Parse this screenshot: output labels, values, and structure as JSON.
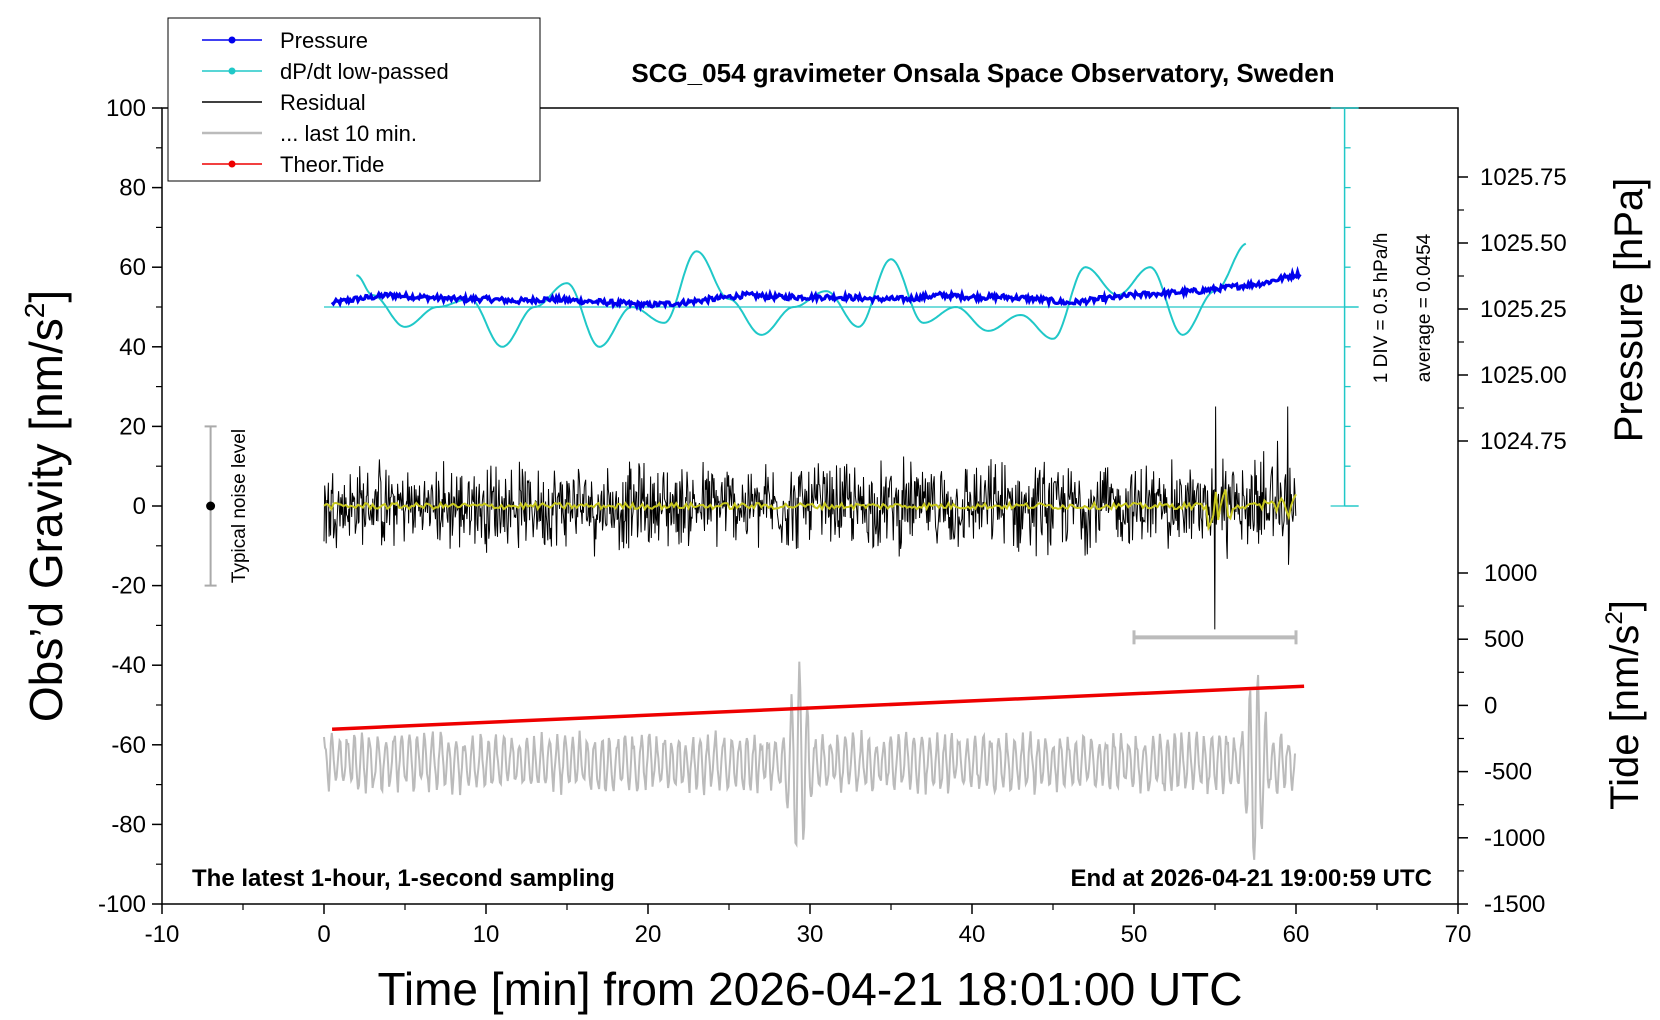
{
  "chart_data": {
    "type": "line",
    "title": "SCG_054 gravimeter Onsala Space Observatory, Sweden",
    "xlabel": "Time [min] from 2026-04-21 18:01:00 UTC",
    "ylabel_left": "Obs’d Gravity [nm/s",
    "ylabel_left_sup": "2",
    "ylabel_left_close": "]",
    "ylabel_pressure": "Pressure [hPa]",
    "ylabel_tide": "Tide [nm/s",
    "ylabel_tide_sup": "2",
    "ylabel_tide_close": "]",
    "xlim": [
      -10,
      70
    ],
    "ylim": [
      -100,
      100
    ],
    "x_ticks": [
      "-10",
      "0",
      "10",
      "20",
      "30",
      "40",
      "50",
      "60",
      "70"
    ],
    "y_ticks": [
      "100",
      "80",
      "60",
      "40",
      "20",
      "0",
      "-20",
      "-40",
      "-60",
      "-80",
      "-100"
    ],
    "pressure_axis": {
      "ticks": [
        "1025.75",
        "1025.50",
        "1025.25",
        "1025.00",
        "1024.75"
      ],
      "range": [
        1024.75,
        1025.75
      ]
    },
    "tide_axis": {
      "ticks": [
        "1000",
        "500",
        "0",
        "-500",
        "-1000",
        "-1500"
      ],
      "range": [
        -1500,
        1000
      ]
    },
    "legend": [
      {
        "label": "Pressure",
        "color": "#0000ee",
        "marker": true
      },
      {
        "label": "dP/dt low-passed",
        "color": "#20c8c8",
        "marker": true
      },
      {
        "label": "Residual",
        "color": "#000000",
        "marker": false
      },
      {
        "label": "... last 10 min.",
        "color": "#bbbbbb",
        "marker": false
      },
      {
        "label": "Theor.Tide",
        "color": "#ee0000",
        "marker": true
      }
    ],
    "legend_position": "top-left",
    "dpdt_scale_label": "1 DIV = 0.5 hPa/h",
    "dpdt_average_label": "average = 0.0454",
    "noise_label": "Typical noise level",
    "noise_bar": {
      "center": 0,
      "low": -20,
      "high": 20,
      "x": -7
    },
    "footer_left": "The latest 1-hour, 1-second sampling",
    "footer_right": "End at 2026-04-21 19:00:59 UTC",
    "series": [
      {
        "name": "Pressure",
        "color": "#0000ee",
        "x": [
          0.5,
          2,
          4,
          6,
          8,
          10,
          12,
          14,
          16,
          18,
          20,
          22,
          24,
          26,
          28,
          30,
          32,
          34,
          36,
          38,
          40,
          42,
          44,
          46,
          48,
          50,
          52,
          54,
          56,
          58,
          60.3
        ],
        "y": [
          51,
          52,
          53,
          52.5,
          52,
          52,
          51.5,
          52,
          51.5,
          51,
          50.5,
          51,
          52,
          53,
          52.5,
          52.5,
          52.5,
          52,
          52,
          53,
          52.5,
          52.5,
          52,
          51,
          52,
          53,
          53.5,
          54,
          55,
          56,
          58.5
        ]
      },
      {
        "name": "dP/dt low-passed",
        "color": "#20c8c8",
        "x": [
          2,
          3,
          5,
          7,
          9,
          11,
          13,
          15,
          17,
          19,
          21,
          23,
          25,
          27,
          29,
          31,
          33,
          35,
          37,
          39,
          41,
          43,
          45,
          47,
          49,
          51,
          53,
          55,
          57
        ],
        "y": [
          58,
          53,
          45,
          50,
          52,
          40,
          50,
          56,
          40,
          50,
          46,
          64,
          52,
          43,
          50,
          54,
          45,
          62,
          46,
          50,
          44,
          48,
          42,
          60,
          53,
          60,
          43,
          54,
          66
        ]
      },
      {
        "name": "Residual",
        "color": "#000000",
        "x_range": [
          0,
          60
        ],
        "typical_amplitude": 10,
        "spikes": [
          {
            "x": 55,
            "min": -31,
            "max": 25
          },
          {
            "x": 59.5,
            "min": -28,
            "max": 25
          }
        ]
      },
      {
        "name": "Theor.Tide",
        "color": "#ee0000",
        "x": [
          0.5,
          60.5
        ],
        "y_tide": [
          -180,
          145
        ]
      },
      {
        "name": "... last 10 min.",
        "color": "#bbbbbb",
        "x_range": [
          0,
          60
        ],
        "typical_range": [
          -72,
          -57
        ],
        "extremes": [
          {
            "x": 29.3,
            "min": -93,
            "max": -40
          },
          {
            "x": 57.5,
            "min": -91,
            "max": -38
          }
        ]
      }
    ],
    "last10_bar": {
      "x": [
        50,
        60
      ],
      "y": -33,
      "color": "#bbbbbb"
    }
  }
}
